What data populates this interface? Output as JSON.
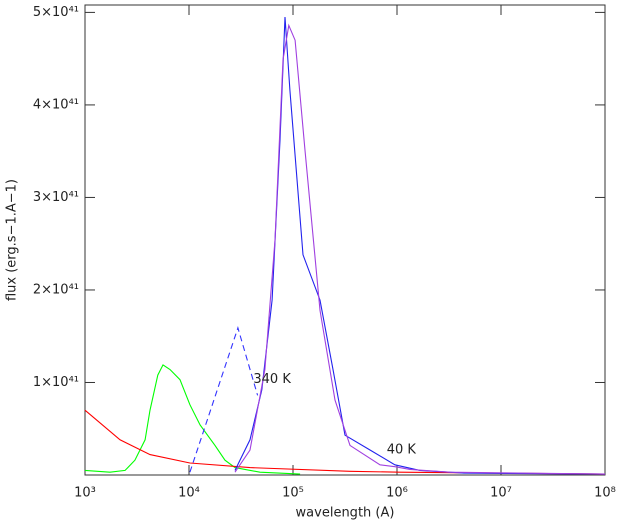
{
  "chart_data": {
    "type": "line",
    "xlabel": "wavelength (A)",
    "ylabel": "flux (erg.s−1.A−1)",
    "xlog": true,
    "xlim": [
      1000,
      100000000
    ],
    "xticks": [
      {
        "value": 1000,
        "label": "10³"
      },
      {
        "value": 10000,
        "label": "10⁴"
      },
      {
        "value": 100000,
        "label": "10⁵"
      },
      {
        "value": 1000000,
        "label": "10⁶"
      },
      {
        "value": 10000000,
        "label": "10⁷"
      },
      {
        "value": 100000000,
        "label": "10⁸"
      }
    ],
    "ylim": [
      0,
      5.08e+41
    ],
    "yticks": [
      {
        "value": 1e+41,
        "label": "1×10⁴¹"
      },
      {
        "value": 2e+41,
        "label": "2×10⁴¹"
      },
      {
        "value": 3e+41,
        "label": "3×10⁴¹"
      },
      {
        "value": 4e+41,
        "label": "4×10⁴¹"
      },
      {
        "value": 5e+41,
        "label": "5×10⁴¹"
      }
    ],
    "annotations": [
      {
        "text": "340 K",
        "x": 63000,
        "y": 1.03e+41
      },
      {
        "text": "40 K",
        "x": 1100000,
        "y": 2.7e+40
      }
    ],
    "series": [
      {
        "color": "#00ff00",
        "dashed": false,
        "x": [
          1000,
          1740,
          2430,
          3020,
          3780,
          4220,
          5010,
          5620,
          6560,
          8190,
          10200,
          12800,
          17800,
          22200,
          27700,
          48200,
          117000
        ],
        "values": [
          5e+39,
          3e+39,
          5e+39,
          1.6e+40,
          3.8e+40,
          7e+40,
          1.08e+41,
          1.19e+41,
          1.14e+41,
          1.03e+41,
          7.6e+40,
          5.4e+40,
          3.2e+40,
          1.6e+40,
          8e+39,
          3e+39,
          1e+39
        ]
      },
      {
        "color": "#ff0000",
        "dashed": false,
        "x": [
          1000,
          2170,
          4220,
          10200,
          38500,
          353000,
          1060000,
          100000000
        ],
        "values": [
          7e+40,
          3.8e+40,
          2.2e+40,
          1.3e+40,
          8e+39,
          4e+39,
          3e+39,
          1e+39
        ]
      },
      {
        "color": "#3333ff",
        "dashed": true,
        "x": [
          10200,
          29500,
          45700
        ],
        "values": [
          3e+39,
          1.59e+41,
          8.6e+40
        ]
      },
      {
        "color": "#2222ee",
        "dashed": false,
        "x": [
          27700,
          38600,
          50100,
          63000,
          75000,
          83800,
          93400,
          124700,
          182000,
          242700,
          316000,
          550000,
          955000,
          1660000,
          4400000,
          100000000
        ],
        "values": [
          5e+39,
          3.8e+40,
          9.2e+40,
          1.89e+41,
          3.62e+41,
          4.95e+41,
          4.16e+41,
          2.38e+41,
          1.89e+41,
          1.14e+41,
          4.3e+40,
          2.7e+40,
          1.1e+40,
          5e+39,
          2e+39,
          1e+39
        ]
      },
      {
        "color": "#a040e0",
        "dashed": false,
        "x": [
          27700,
          38600,
          53700,
          67100,
          80100,
          91200,
          104700,
          130300,
          182000,
          253500,
          353000,
          687000,
          955000,
          1330000,
          3240000,
          100000000
        ],
        "values": [
          3e+39,
          2.7e+40,
          1.14e+41,
          2.54e+41,
          4.49e+41,
          4.86e+41,
          4.7e+41,
          3.51e+41,
          1.78e+41,
          8.1e+40,
          3.2e+40,
          1.1e+40,
          9e+39,
          6e+39,
          3e+39,
          1e+39
        ]
      }
    ]
  }
}
